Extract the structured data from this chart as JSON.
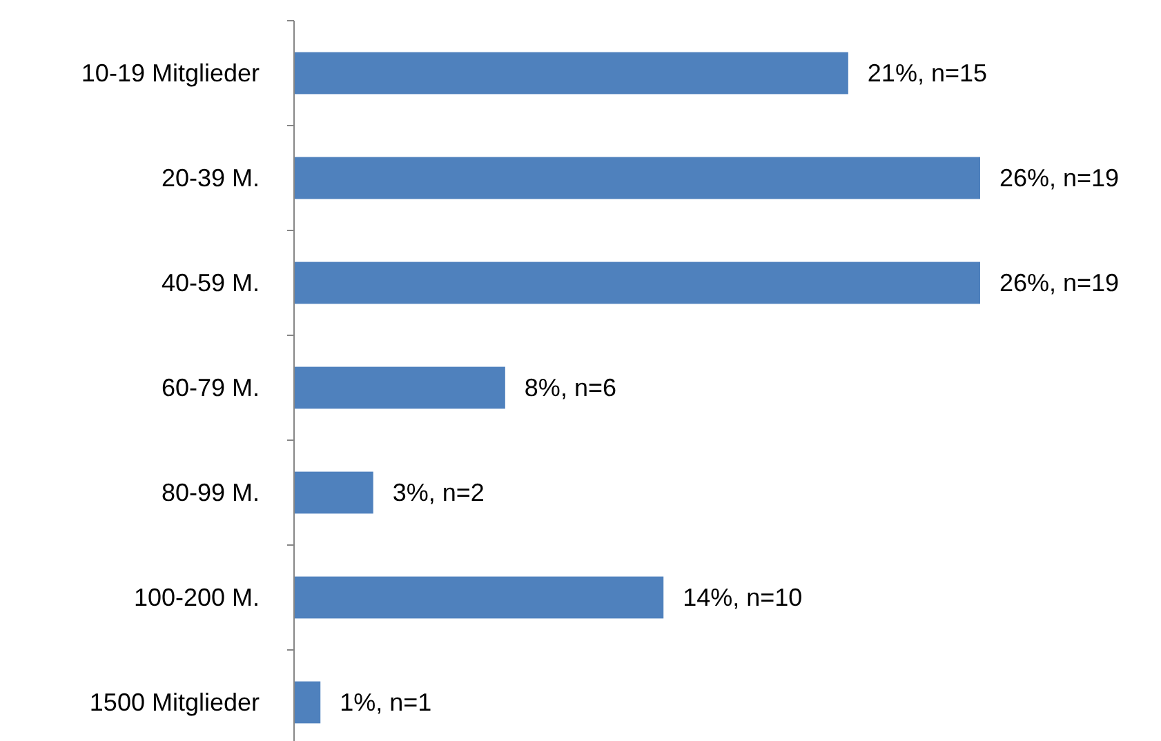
{
  "chart_data": {
    "type": "bar",
    "orientation": "horizontal",
    "categories": [
      "10-19 Mitglieder",
      "20-39 M.",
      "40-59 M.",
      "60-79 M.",
      "80-99 M.",
      "100-200 M.",
      "1500 Mitglieder"
    ],
    "values": [
      21,
      26,
      26,
      8,
      3,
      14,
      1
    ],
    "value_labels": [
      "21%, n=15",
      "26%, n=19",
      "26%, n=19",
      "8%, n=6",
      "3%, n=2",
      "14%, n=10",
      "1%, n=1"
    ],
    "color": "#4f81bd"
  }
}
